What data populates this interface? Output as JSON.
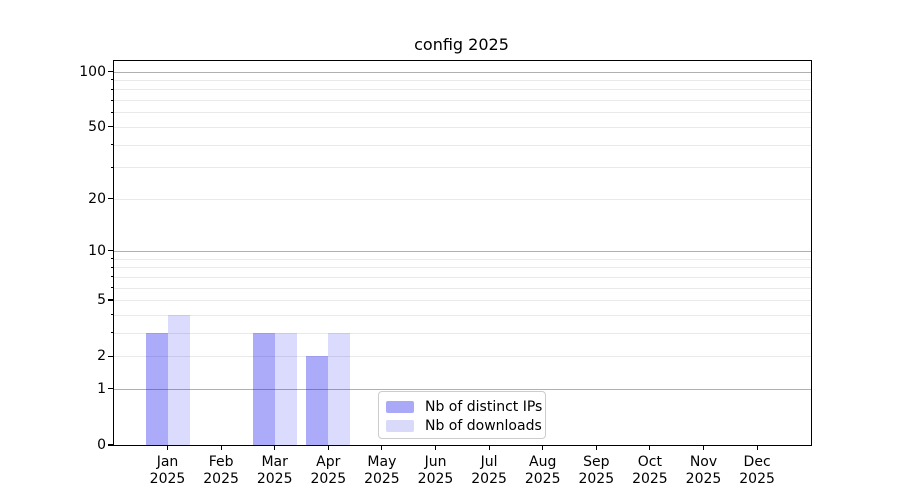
{
  "figure": {
    "background": "#ffffff"
  },
  "chart_data": {
    "type": "bar",
    "title": "config 2025",
    "categories": [
      "Jan",
      "Feb",
      "Mar",
      "Apr",
      "May",
      "Jun",
      "Jul",
      "Aug",
      "Sep",
      "Oct",
      "Nov",
      "Dec"
    ],
    "category_years": [
      "2025",
      "2025",
      "2025",
      "2025",
      "2025",
      "2025",
      "2025",
      "2025",
      "2025",
      "2025",
      "2025",
      "2025"
    ],
    "series": [
      {
        "name": "Nb of distinct IPs",
        "color": "#a9a9f8",
        "fill": "rgba(15,15,240,0.35)",
        "values": [
          3,
          0,
          3,
          2,
          0,
          0,
          0,
          0,
          0,
          0,
          0,
          0
        ]
      },
      {
        "name": "Nb of downloads",
        "color": "#d9d9f9",
        "fill": "rgba(15,15,240,0.15)",
        "values": [
          4,
          0,
          3,
          3,
          0,
          0,
          0,
          0,
          0,
          0,
          0,
          0
        ]
      }
    ],
    "y_axis": {
      "scale": "log1p",
      "ylim": [
        0,
        114
      ],
      "ticks": [
        0,
        1,
        2,
        5,
        10,
        20,
        50,
        100
      ],
      "minor_ticks": [
        3,
        4,
        6,
        7,
        8,
        9,
        30,
        40,
        60,
        70,
        80,
        90
      ],
      "major_grid_values": [
        1,
        10,
        100
      ]
    },
    "x_axis": {
      "label_lines": 2
    },
    "grid": {
      "major_color": "#b0b0b0",
      "minor_color": "#e9e9e9",
      "on": true
    },
    "legend": {
      "position": "lower center",
      "border_color": "#cccccc"
    }
  }
}
